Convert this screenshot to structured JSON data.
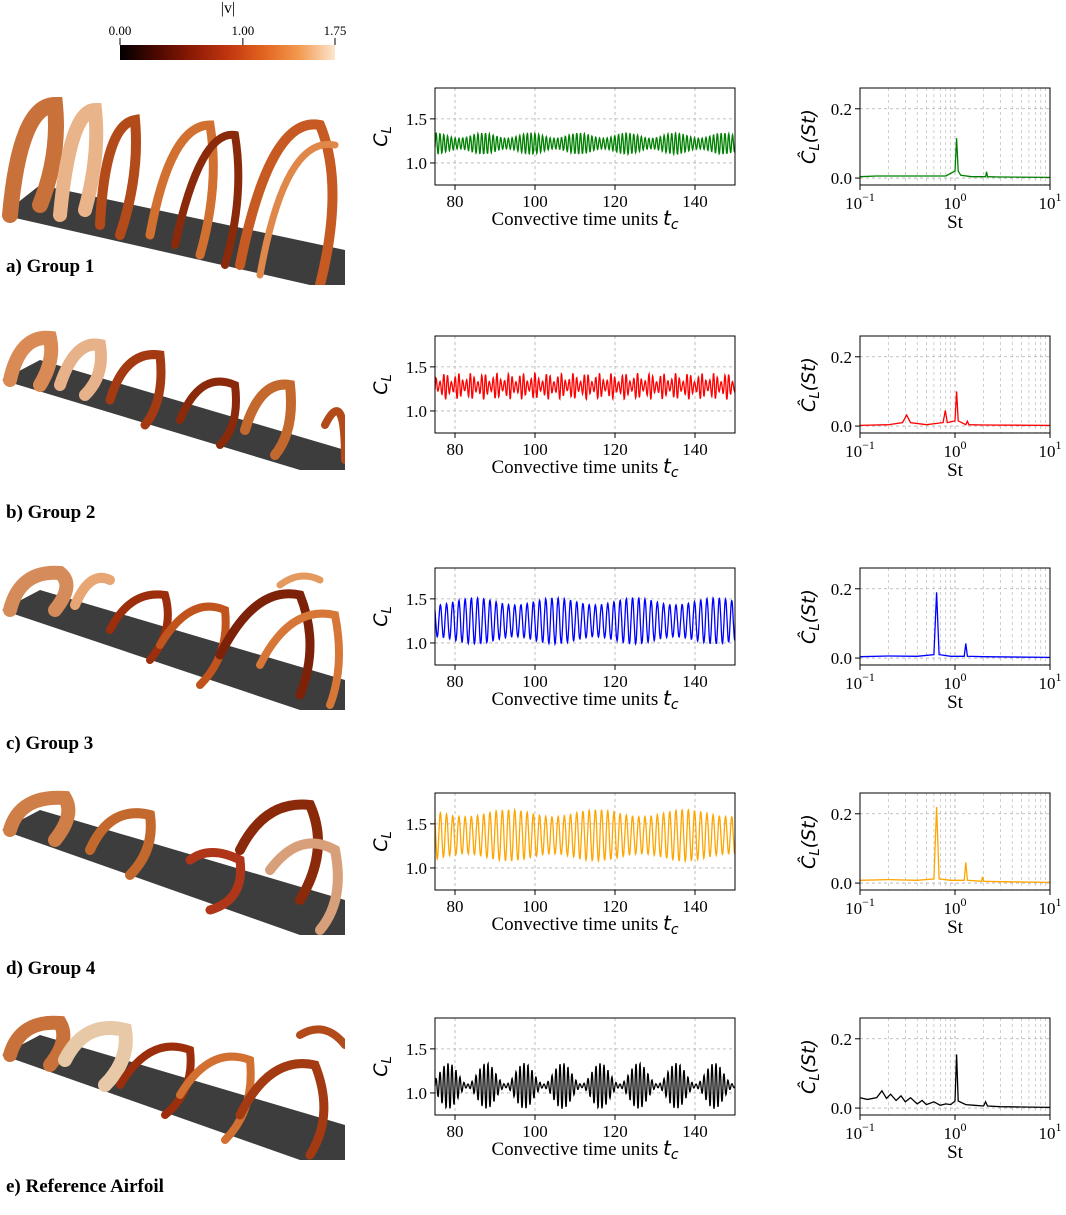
{
  "colorbar": {
    "title": "|v|",
    "ticks": [
      "0.00",
      "1.00",
      "1.75"
    ],
    "tick_values": [
      0.0,
      1.0,
      1.75
    ],
    "colors": [
      "#000000",
      "#4a0800",
      "#8b1a05",
      "#c0350f",
      "#e2631f",
      "#f29a50",
      "#fde6cf"
    ]
  },
  "panels": [
    {
      "label": "a) Group 1",
      "color": "#008000"
    },
    {
      "label": "b) Group 2",
      "color": "#ff0000"
    },
    {
      "label": "c) Group 3",
      "color": "#0000ff"
    },
    {
      "label": "d) Group 4",
      "color": "#ffa500"
    },
    {
      "label": "e) Reference Airfoil",
      "color": "#000000"
    }
  ],
  "axis_text": {
    "ts_xlabel": "Convective time units",
    "ts_xlabel_sym": "t",
    "ts_xlabel_sub": "c",
    "ts_ylabel": "C",
    "ts_ylabel_sub": "L",
    "sp_xlabel": "St",
    "sp_ylabel": "Ĉ",
    "sp_ylabel_sub": "L",
    "sp_ylabel_arg": "(St)",
    "sp_xtick_base": "10",
    "sp_xtick_exps": [
      "−1",
      "0",
      "1"
    ]
  },
  "chart_data": [
    {
      "type": "line",
      "panel": "a) Group 1",
      "plot": "time-series",
      "xlabel": "Convective time units t_c",
      "ylabel": "C_L",
      "xlim": [
        75,
        150
      ],
      "ylim": [
        0.75,
        1.85
      ],
      "xticks": [
        80,
        100,
        120,
        140
      ],
      "yticks": [
        1.0,
        1.5
      ],
      "series": [
        {
          "color": "#008000",
          "mean": 1.22,
          "amplitude": 0.09,
          "period": 0.95,
          "mod_amplitude": 0.03,
          "mod_period": 12
        }
      ]
    },
    {
      "type": "line",
      "panel": "a) Group 1",
      "plot": "spectrum",
      "xscale": "log",
      "xlabel": "St",
      "ylabel": "Ĉ_L(St)",
      "xlim": [
        0.1,
        10
      ],
      "ylim": [
        -0.02,
        0.26
      ],
      "yticks": [
        0.0,
        0.2
      ],
      "series": [
        {
          "color": "#008000",
          "x": [
            0.1,
            0.15,
            0.3,
            0.8,
            1.0,
            1.04,
            1.08,
            1.15,
            1.5,
            2.1,
            2.15,
            2.2,
            3,
            10
          ],
          "y": [
            0.004,
            0.006,
            0.006,
            0.006,
            0.02,
            0.115,
            0.02,
            0.008,
            0.004,
            0.004,
            0.018,
            0.004,
            0.003,
            0.002
          ]
        }
      ]
    },
    {
      "type": "line",
      "panel": "b) Group 2",
      "plot": "time-series",
      "xlabel": "Convective time units t_c",
      "ylabel": "C_L",
      "xlim": [
        75,
        150
      ],
      "ylim": [
        0.75,
        1.85
      ],
      "xticks": [
        80,
        100,
        120,
        140
      ],
      "yticks": [
        1.0,
        1.5
      ],
      "series": [
        {
          "color": "#ff0000",
          "mean": 1.28,
          "amplitude": 0.1,
          "period": 0.95,
          "mod_amplitude": 0.05,
          "mod_period": 3.2
        }
      ]
    },
    {
      "type": "line",
      "panel": "b) Group 2",
      "plot": "spectrum",
      "xscale": "log",
      "xlabel": "St",
      "ylabel": "Ĉ_L(St)",
      "xlim": [
        0.1,
        10
      ],
      "ylim": [
        -0.02,
        0.26
      ],
      "yticks": [
        0.0,
        0.2
      ],
      "series": [
        {
          "color": "#ff0000",
          "x": [
            0.1,
            0.2,
            0.28,
            0.31,
            0.34,
            0.5,
            0.75,
            0.79,
            0.83,
            1.0,
            1.04,
            1.08,
            1.3,
            1.35,
            1.4,
            2,
            10
          ],
          "y": [
            0.002,
            0.004,
            0.01,
            0.032,
            0.01,
            0.004,
            0.01,
            0.045,
            0.01,
            0.015,
            0.1,
            0.015,
            0.004,
            0.014,
            0.004,
            0.003,
            0.002
          ]
        }
      ]
    },
    {
      "type": "line",
      "panel": "c) Group 3",
      "plot": "time-series",
      "xlabel": "Convective time units t_c",
      "ylabel": "C_L",
      "xlim": [
        75,
        150
      ],
      "ylim": [
        0.75,
        1.85
      ],
      "xticks": [
        80,
        100,
        120,
        140
      ],
      "yticks": [
        1.0,
        1.5
      ],
      "series": [
        {
          "color": "#0000ff",
          "mean": 1.25,
          "amplitude": 0.22,
          "period": 1.55,
          "mod_amplitude": 0.04,
          "mod_period": 20
        }
      ]
    },
    {
      "type": "line",
      "panel": "c) Group 3",
      "plot": "spectrum",
      "xscale": "log",
      "xlabel": "St",
      "ylabel": "Ĉ_L(St)",
      "xlim": [
        0.1,
        10
      ],
      "ylim": [
        -0.02,
        0.26
      ],
      "yticks": [
        0.0,
        0.2
      ],
      "series": [
        {
          "color": "#0000ff",
          "x": [
            0.1,
            0.2,
            0.4,
            0.6,
            0.64,
            0.68,
            0.9,
            1.25,
            1.3,
            1.35,
            2,
            10
          ],
          "y": [
            0.004,
            0.006,
            0.005,
            0.01,
            0.19,
            0.01,
            0.005,
            0.005,
            0.042,
            0.005,
            0.004,
            0.002
          ]
        }
      ]
    },
    {
      "type": "line",
      "panel": "d) Group 4",
      "plot": "time-series",
      "xlabel": "Convective time units t_c",
      "ylabel": "C_L",
      "xlim": [
        75,
        150
      ],
      "ylim": [
        0.75,
        1.85
      ],
      "xticks": [
        80,
        100,
        120,
        140
      ],
      "yticks": [
        1.0,
        1.5
      ],
      "series": [
        {
          "color": "#ffa500",
          "mean": 1.37,
          "amplitude": 0.25,
          "period": 1.55,
          "mod_amplitude": 0.04,
          "mod_period": 22
        }
      ]
    },
    {
      "type": "line",
      "panel": "d) Group 4",
      "plot": "spectrum",
      "xscale": "log",
      "xlabel": "St",
      "ylabel": "Ĉ_L(St)",
      "xlim": [
        0.1,
        10
      ],
      "ylim": [
        -0.02,
        0.26
      ],
      "yticks": [
        0.0,
        0.2
      ],
      "series": [
        {
          "color": "#ffa500",
          "x": [
            0.1,
            0.2,
            0.4,
            0.6,
            0.64,
            0.68,
            0.9,
            1.25,
            1.3,
            1.35,
            1.9,
            1.95,
            2.0,
            3,
            10
          ],
          "y": [
            0.008,
            0.01,
            0.008,
            0.012,
            0.22,
            0.012,
            0.008,
            0.008,
            0.06,
            0.008,
            0.005,
            0.018,
            0.005,
            0.004,
            0.002
          ]
        }
      ]
    },
    {
      "type": "line",
      "panel": "e) Reference Airfoil",
      "plot": "time-series",
      "xlabel": "Convective time units t_c",
      "ylabel": "C_L",
      "xlim": [
        75,
        150
      ],
      "ylim": [
        0.75,
        1.85
      ],
      "xticks": [
        80,
        100,
        120,
        140
      ],
      "yticks": [
        1.0,
        1.5
      ],
      "series": [
        {
          "color": "#000000",
          "mean": 1.08,
          "amplitude": 0.14,
          "period": 1.0,
          "mod_amplitude": 0.12,
          "mod_period": 9.5
        }
      ]
    },
    {
      "type": "line",
      "panel": "e) Reference Airfoil",
      "plot": "spectrum",
      "xscale": "log",
      "xlabel": "St",
      "ylabel": "Ĉ_L(St)",
      "xlim": [
        0.1,
        10
      ],
      "ylim": [
        -0.02,
        0.26
      ],
      "yticks": [
        0.0,
        0.2
      ],
      "series": [
        {
          "color": "#000000",
          "x": [
            0.1,
            0.12,
            0.15,
            0.17,
            0.19,
            0.21,
            0.24,
            0.27,
            0.3,
            0.34,
            0.4,
            0.45,
            0.5,
            0.6,
            0.7,
            0.8,
            0.9,
            1.0,
            1.04,
            1.08,
            1.3,
            1.6,
            2.0,
            2.1,
            2.2,
            3,
            5,
            10
          ],
          "y": [
            0.03,
            0.025,
            0.03,
            0.05,
            0.028,
            0.04,
            0.022,
            0.035,
            0.018,
            0.03,
            0.012,
            0.022,
            0.01,
            0.018,
            0.008,
            0.012,
            0.01,
            0.02,
            0.155,
            0.02,
            0.01,
            0.008,
            0.006,
            0.018,
            0.006,
            0.004,
            0.003,
            0.002
          ]
        }
      ]
    }
  ]
}
